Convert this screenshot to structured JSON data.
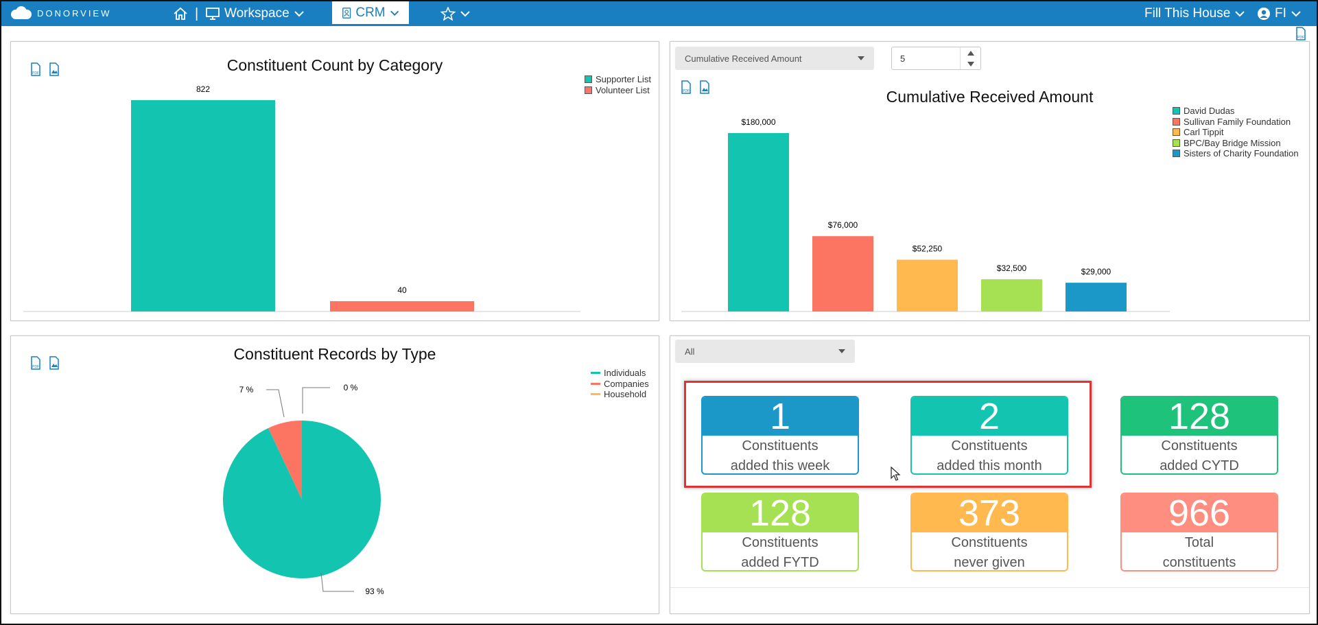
{
  "nav": {
    "brand": "DONORVIEW",
    "separator": "|",
    "workspace": "Workspace",
    "crm": "CRM",
    "org": "Fill This House",
    "user": "FI",
    "colors": {
      "bar": "#1a7fc0"
    }
  },
  "constituent_count": {
    "title": "Constituent Count by Category",
    "legend": [
      {
        "label": "Supporter List",
        "color": "#13c4b1"
      },
      {
        "label": "Volunteer List",
        "color": "#fb7562"
      }
    ],
    "chart_data": {
      "type": "bar",
      "categories": [
        "Supporter List",
        "Volunteer List"
      ],
      "values": [
        822,
        40
      ],
      "value_labels": [
        "822",
        "40"
      ],
      "title": "Constituent Count by Category",
      "ylim": [
        0,
        822
      ]
    }
  },
  "cumulative": {
    "select_value": "Cumulative Received Amount",
    "stepper_value": "5",
    "title": "Cumulative Received Amount",
    "legend": [
      {
        "label": "David Dudas",
        "color": "#13c4b1"
      },
      {
        "label": "Sullivan Family  Foundation",
        "color": "#fb7562"
      },
      {
        "label": "Carl Tippit",
        "color": "#ffb94f"
      },
      {
        "label": "BPC/Bay Bridge Mission",
        "color": "#a5e152"
      },
      {
        "label": "Sisters of Charity Foundation",
        "color": "#1c98c8"
      }
    ],
    "chart_data": {
      "type": "bar",
      "categories": [
        "David Dudas",
        "Sullivan Family  Foundation",
        "Carl Tippit",
        "BPC/Bay Bridge Mission",
        "Sisters of Charity Foundation"
      ],
      "values": [
        180000,
        76000,
        52250,
        32500,
        29000
      ],
      "value_labels": [
        "$180,000",
        "$76,000",
        "$52,250",
        "$32,500",
        "$29,000"
      ],
      "title": "Cumulative Received Amount",
      "ylim": [
        0,
        180000
      ]
    }
  },
  "records_by_type": {
    "title": "Constituent Records by Type",
    "legend": [
      {
        "label": "Individuals",
        "color": "#13c4b1"
      },
      {
        "label": "Companies",
        "color": "#fb7562"
      },
      {
        "label": "Household",
        "color": "#ffb94f"
      }
    ],
    "chart_data": {
      "type": "pie",
      "categories": [
        "Individuals",
        "Companies",
        "Household"
      ],
      "values": [
        93,
        7,
        0
      ],
      "value_labels": [
        "93 %",
        "7 %",
        "0 %"
      ],
      "title": "Constituent Records by Type"
    }
  },
  "stats": {
    "filter_value": "All",
    "tiles": [
      {
        "number": "1",
        "line1": "Constituents",
        "line2": "added this week",
        "color": "#1c98c8"
      },
      {
        "number": "2",
        "line1": "Constituents",
        "line2": "added this month",
        "color": "#13c4b1"
      },
      {
        "number": "128",
        "line1": "Constituents",
        "line2": "added CYTD",
        "color": "#1ec27a"
      },
      {
        "number": "128",
        "line1": "Constituents",
        "line2": "added FYTD",
        "color": "#a5e152"
      },
      {
        "number": "373",
        "line1": "Constituents",
        "line2": "never given",
        "color": "#ffb94f"
      },
      {
        "number": "966",
        "line1": "Total",
        "line2": "constituents",
        "color": "#fd8e80"
      }
    ]
  }
}
